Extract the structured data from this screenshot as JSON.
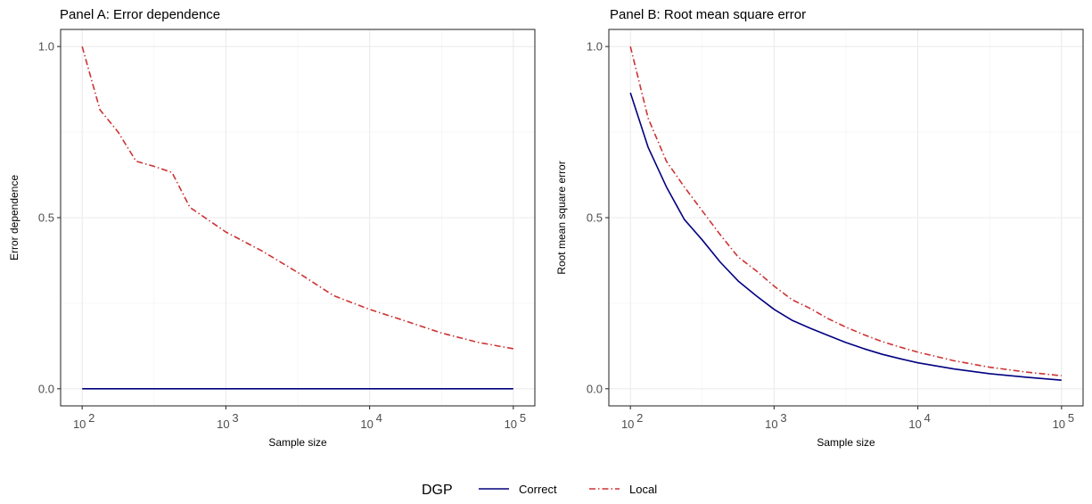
{
  "chart_data": [
    {
      "type": "line",
      "title": "Panel A: Error dependence",
      "xlabel": "Sample size",
      "ylabel": "Error dependence",
      "xscale": "log10",
      "xlim": [
        100,
        100000
      ],
      "ylim": [
        0,
        1
      ],
      "xticks": [
        {
          "value": 100,
          "exp": "2"
        },
        {
          "value": 1000,
          "exp": "3"
        },
        {
          "value": 10000,
          "exp": "4"
        },
        {
          "value": 100000,
          "exp": "5"
        }
      ],
      "yticks": [
        "0.0",
        "0.5",
        "1.0"
      ],
      "grid": true,
      "series": [
        {
          "name": "Correct",
          "color": "#000080",
          "style": "solid",
          "x": [
            100,
            100000
          ],
          "y": [
            0,
            0
          ]
        },
        {
          "name": "Local",
          "color": "#cd3333",
          "style": "dashdot",
          "x": [
            100,
            133,
            178,
            237,
            316,
            422,
            562,
            1000,
            1778,
            3162,
            5623,
            10000,
            17783,
            31623,
            56234,
            100000
          ],
          "y": [
            1.0,
            0.815,
            0.75,
            0.665,
            0.65,
            0.632,
            0.53,
            0.458,
            0.403,
            0.34,
            0.272,
            0.232,
            0.198,
            0.163,
            0.136,
            0.117
          ]
        }
      ]
    },
    {
      "type": "line",
      "title": "Panel B: Root mean square error",
      "xlabel": "Sample size",
      "ylabel": "Root mean square error",
      "xscale": "log10",
      "xlim": [
        100,
        100000
      ],
      "ylim": [
        0,
        1
      ],
      "xticks": [
        {
          "value": 100,
          "exp": "2"
        },
        {
          "value": 1000,
          "exp": "3"
        },
        {
          "value": 10000,
          "exp": "4"
        },
        {
          "value": 100000,
          "exp": "5"
        }
      ],
      "yticks": [
        "0.0",
        "0.5",
        "1.0"
      ],
      "grid": true,
      "series": [
        {
          "name": "Correct",
          "color": "#000080",
          "style": "solid",
          "x": [
            100,
            133,
            178,
            237,
            316,
            422,
            562,
            750,
            1000,
            1334,
            1778,
            2371,
            3162,
            4217,
            5623,
            7499,
            10000,
            17783,
            31623,
            56234,
            100000
          ],
          "y": [
            0.865,
            0.705,
            0.59,
            0.495,
            0.435,
            0.37,
            0.315,
            0.272,
            0.232,
            0.2,
            0.177,
            0.156,
            0.135,
            0.117,
            0.101,
            0.088,
            0.076,
            0.058,
            0.044,
            0.034,
            0.025
          ]
        },
        {
          "name": "Local",
          "color": "#cd3333",
          "style": "dashdot",
          "x": [
            100,
            133,
            178,
            237,
            316,
            422,
            562,
            750,
            1000,
            1334,
            1778,
            2371,
            3162,
            4217,
            5623,
            7499,
            10000,
            17783,
            31623,
            56234,
            100000
          ],
          "y": [
            1.0,
            0.79,
            0.665,
            0.59,
            0.52,
            0.45,
            0.385,
            0.345,
            0.3,
            0.26,
            0.235,
            0.205,
            0.18,
            0.158,
            0.138,
            0.122,
            0.107,
            0.082,
            0.063,
            0.049,
            0.038
          ]
        }
      ]
    }
  ],
  "legend": {
    "title": "DGP",
    "placement": "bottom",
    "items": [
      {
        "label": "Correct",
        "color": "#000080",
        "style": "solid"
      },
      {
        "label": "Local",
        "color": "#cd3333",
        "style": "dashdot"
      }
    ]
  }
}
